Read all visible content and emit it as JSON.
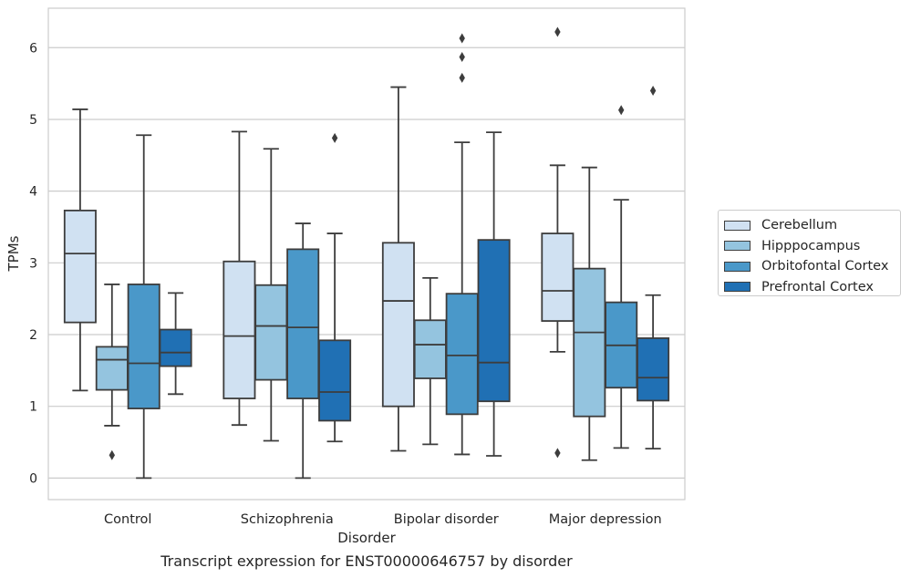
{
  "chart_data": {
    "type": "box",
    "caption": "Transcript expression for ENST00000646757 by disorder",
    "xlabel": "Disorder",
    "ylabel": "TPMs",
    "ylim": [
      -0.3,
      6.55
    ],
    "yticks": [
      0,
      1,
      2,
      3,
      4,
      5,
      6
    ],
    "grid": true,
    "legend_position": "right",
    "categories": [
      "Control",
      "Schizophrenia",
      "Bipolar disorder",
      "Major depression"
    ],
    "series": [
      {
        "name": "Cerebellum",
        "color": "#d0e1f2",
        "boxes": [
          {
            "whisker_low": 1.22,
            "q1": 2.17,
            "median": 3.13,
            "q3": 3.73,
            "whisker_high": 5.14,
            "outliers": []
          },
          {
            "whisker_low": 0.74,
            "q1": 1.11,
            "median": 1.98,
            "q3": 3.02,
            "whisker_high": 4.83,
            "outliers": []
          },
          {
            "whisker_low": 0.38,
            "q1": 1.0,
            "median": 2.47,
            "q3": 3.28,
            "whisker_high": 5.45,
            "outliers": []
          },
          {
            "whisker_low": 1.76,
            "q1": 2.19,
            "median": 2.61,
            "q3": 3.41,
            "whisker_high": 4.36,
            "outliers": [
              0.35,
              6.22
            ]
          }
        ]
      },
      {
        "name": "Hipppocampus",
        "color": "#94c4df",
        "boxes": [
          {
            "whisker_low": 0.73,
            "q1": 1.23,
            "median": 1.65,
            "q3": 1.83,
            "whisker_high": 2.7,
            "outliers": [
              0.32
            ]
          },
          {
            "whisker_low": 0.52,
            "q1": 1.37,
            "median": 2.12,
            "q3": 2.69,
            "whisker_high": 4.59,
            "outliers": []
          },
          {
            "whisker_low": 0.47,
            "q1": 1.39,
            "median": 1.86,
            "q3": 2.2,
            "whisker_high": 2.79,
            "outliers": []
          },
          {
            "whisker_low": 0.25,
            "q1": 0.86,
            "median": 2.03,
            "q3": 2.92,
            "whisker_high": 4.33,
            "outliers": []
          }
        ]
      },
      {
        "name": "Orbitofontal Cortex",
        "color": "#4a98c9",
        "boxes": [
          {
            "whisker_low": 0.0,
            "q1": 0.97,
            "median": 1.6,
            "q3": 2.7,
            "whisker_high": 4.78,
            "outliers": []
          },
          {
            "whisker_low": 0.0,
            "q1": 1.11,
            "median": 2.1,
            "q3": 3.19,
            "whisker_high": 3.55,
            "outliers": []
          },
          {
            "whisker_low": 0.33,
            "q1": 0.89,
            "median": 1.71,
            "q3": 2.57,
            "whisker_high": 4.68,
            "outliers": [
              5.58,
              5.87,
              6.13
            ]
          },
          {
            "whisker_low": 0.42,
            "q1": 1.26,
            "median": 1.85,
            "q3": 2.45,
            "whisker_high": 3.88,
            "outliers": [
              5.13
            ]
          }
        ]
      },
      {
        "name": "Prefrontal Cortex",
        "color": "#2070b4",
        "boxes": [
          {
            "whisker_low": 1.17,
            "q1": 1.56,
            "median": 1.75,
            "q3": 2.07,
            "whisker_high": 2.58,
            "outliers": []
          },
          {
            "whisker_low": 0.51,
            "q1": 0.8,
            "median": 1.2,
            "q3": 1.92,
            "whisker_high": 3.41,
            "outliers": [
              4.74
            ]
          },
          {
            "whisker_low": 0.31,
            "q1": 1.07,
            "median": 1.61,
            "q3": 3.32,
            "whisker_high": 4.82,
            "outliers": []
          },
          {
            "whisker_low": 0.41,
            "q1": 1.08,
            "median": 1.4,
            "q3": 1.95,
            "whisker_high": 2.55,
            "outliers": [
              5.4
            ]
          }
        ]
      }
    ]
  }
}
